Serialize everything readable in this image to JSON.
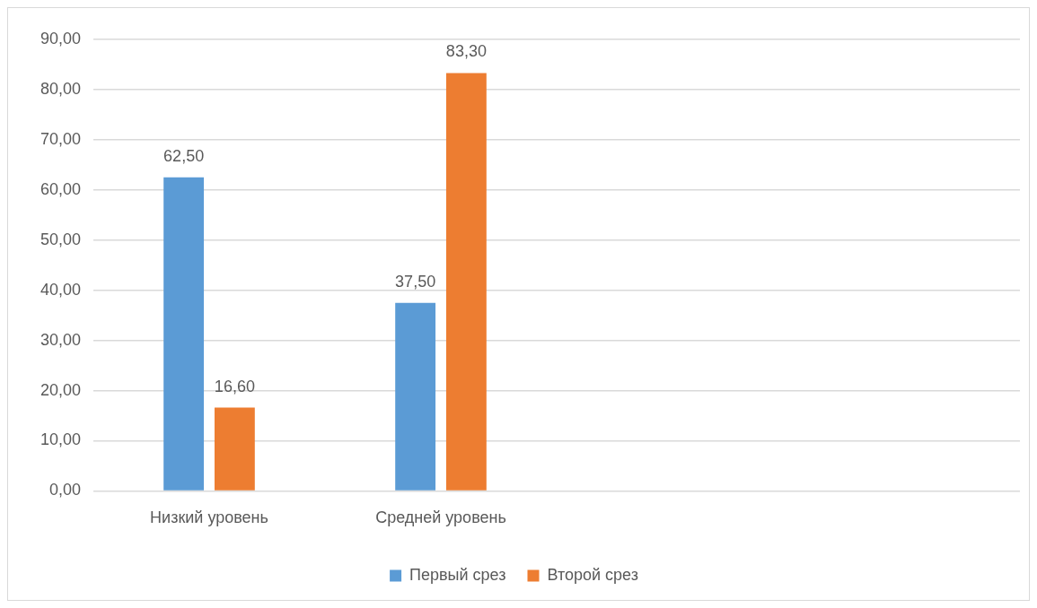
{
  "chart_data": {
    "type": "bar",
    "categories": [
      "Низкий уровень",
      "Средней уровень",
      null,
      null
    ],
    "series": [
      {
        "name": "Первый срез",
        "color": "#5b9bd5",
        "values": [
          62.5,
          37.5,
          null,
          null
        ],
        "value_labels": [
          "62,50",
          "37,50",
          null,
          null
        ]
      },
      {
        "name": "Второй срез",
        "color": "#ed7d31",
        "values": [
          16.6,
          83.3,
          null,
          null
        ],
        "value_labels": [
          "16,60",
          "83,30",
          null,
          null
        ]
      }
    ],
    "ylim": [
      0,
      90
    ],
    "yticks": [
      {
        "value": 0,
        "label": "0,00"
      },
      {
        "value": 10,
        "label": "10,00"
      },
      {
        "value": 20,
        "label": "20,00"
      },
      {
        "value": 30,
        "label": "30,00"
      },
      {
        "value": 40,
        "label": "40,00"
      },
      {
        "value": 50,
        "label": "50,00"
      },
      {
        "value": 60,
        "label": "60,00"
      },
      {
        "value": 70,
        "label": "70,00"
      },
      {
        "value": 80,
        "label": "80,00"
      },
      {
        "value": 90,
        "label": "90,00"
      }
    ],
    "grid": "y",
    "legend": "bottom"
  }
}
